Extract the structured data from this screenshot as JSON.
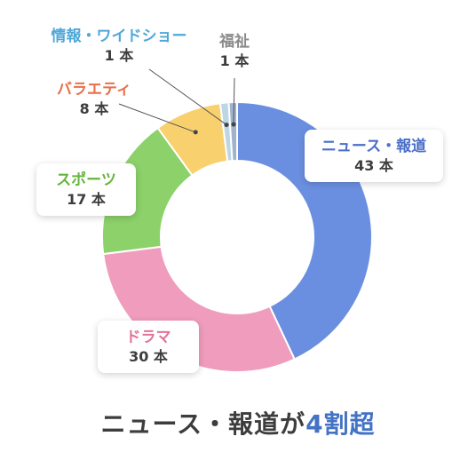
{
  "chart_data": {
    "type": "pie",
    "donut": true,
    "unit": "本",
    "slices": [
      {
        "label": "ニュース・報道",
        "value": 43,
        "value_text": "43 本",
        "color": "#6b8fe0"
      },
      {
        "label": "ドラマ",
        "value": 30,
        "value_text": "30 本",
        "color": "#f09cbc"
      },
      {
        "label": "スポーツ",
        "value": 17,
        "value_text": "17 本",
        "color": "#8cd16a"
      },
      {
        "label": "バラエティ",
        "value": 8,
        "value_text": "8 本",
        "color": "#f8d06e"
      },
      {
        "label": "情報・ワイドショー",
        "value": 1,
        "value_text": "1 本",
        "color": "#bcd6e6"
      },
      {
        "label": "福祉",
        "value": 1,
        "value_text": "1 本",
        "color": "#9fb3cc"
      }
    ],
    "label_colors": {
      "ニュース・報道": "#4a6fc8",
      "ドラマ": "#e3739b",
      "スポーツ": "#67b53e",
      "バラエティ": "#e8704a",
      "情報・ワイドショー": "#4fa8d8",
      "福祉": "#8a8a8a"
    }
  },
  "headline": {
    "prefix": "ニュース・報道が",
    "accent": "4割超",
    "accent_color": "#4472c4"
  }
}
